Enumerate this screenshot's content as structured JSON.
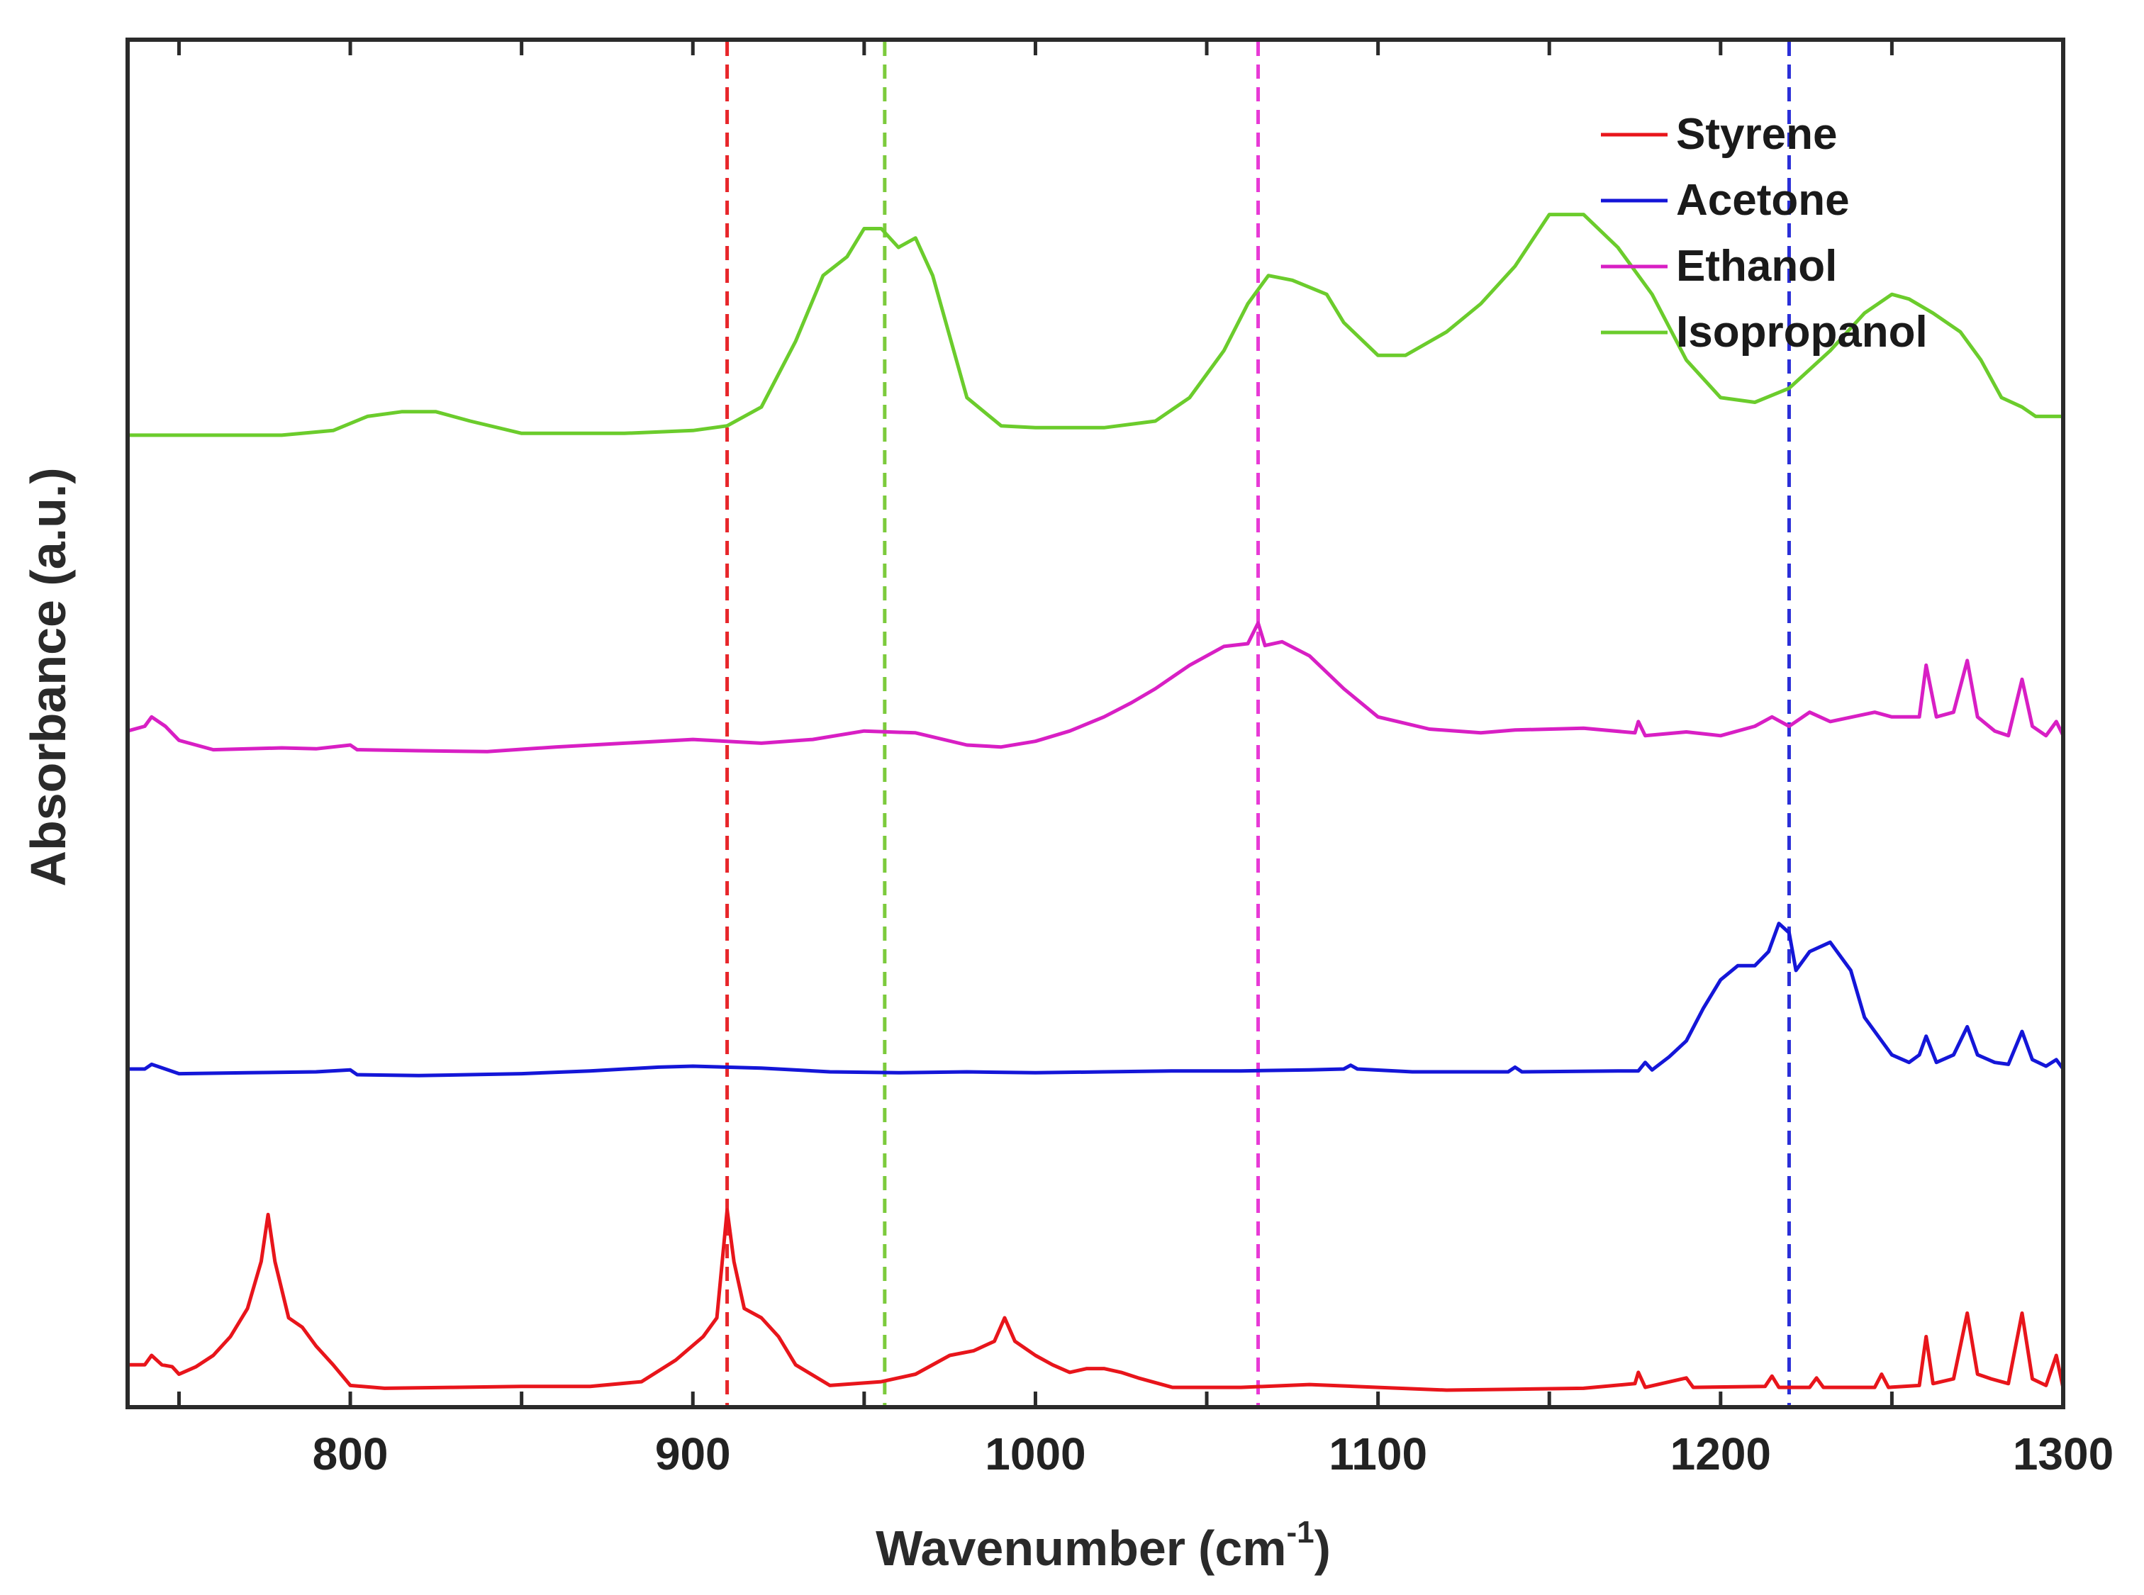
{
  "chart_data": {
    "type": "line",
    "title": "",
    "xlabel": "Wavenumber",
    "xlabel_unit_base": "(cm",
    "xlabel_unit_exp": "-1",
    "xlabel_unit_close": ")",
    "ylabel": "Absorbance (a.u.)",
    "xlim": [
      735,
      1300
    ],
    "ylim": [
      0,
      1
    ],
    "x_ticks": [
      800,
      900,
      1000,
      1100,
      1200,
      1300
    ],
    "x_tick_labels": [
      "800",
      "900",
      "1000",
      "1100",
      "1200",
      "1300"
    ],
    "y_ticks_shown": false,
    "grid": false,
    "legend": {
      "position": "top-right",
      "entries": [
        "Styrene",
        "Acetone",
        "Ethanol",
        "Isopropanol"
      ]
    },
    "reference_lines": [
      {
        "x": 910,
        "color": "#e8262a",
        "style": "dashed"
      },
      {
        "x": 956,
        "color": "#7ccb3c",
        "style": "dashed"
      },
      {
        "x": 1065,
        "color": "#e83ad6",
        "style": "dashed"
      },
      {
        "x": 1220,
        "color": "#2a2fd8",
        "style": "dashed"
      }
    ],
    "series": [
      {
        "name": "Styrene",
        "color": "#e8151b",
        "points": [
          [
            735,
            0.03
          ],
          [
            740,
            0.03
          ],
          [
            742,
            0.04
          ],
          [
            745,
            0.03
          ],
          [
            748,
            0.028
          ],
          [
            750,
            0.02
          ],
          [
            755,
            0.028
          ],
          [
            760,
            0.04
          ],
          [
            765,
            0.06
          ],
          [
            770,
            0.09
          ],
          [
            774,
            0.14
          ],
          [
            776,
            0.19
          ],
          [
            778,
            0.14
          ],
          [
            782,
            0.08
          ],
          [
            786,
            0.07
          ],
          [
            790,
            0.05
          ],
          [
            795,
            0.03
          ],
          [
            800,
            0.008
          ],
          [
            810,
            0.005
          ],
          [
            830,
            0.006
          ],
          [
            850,
            0.007
          ],
          [
            870,
            0.007
          ],
          [
            885,
            0.012
          ],
          [
            895,
            0.035
          ],
          [
            903,
            0.06
          ],
          [
            907,
            0.08
          ],
          [
            910,
            0.195
          ],
          [
            912,
            0.14
          ],
          [
            915,
            0.09
          ],
          [
            920,
            0.08
          ],
          [
            925,
            0.06
          ],
          [
            930,
            0.03
          ],
          [
            940,
            0.008
          ],
          [
            955,
            0.012
          ],
          [
            965,
            0.02
          ],
          [
            975,
            0.04
          ],
          [
            982,
            0.045
          ],
          [
            988,
            0.055
          ],
          [
            991,
            0.08
          ],
          [
            994,
            0.055
          ],
          [
            1000,
            0.04
          ],
          [
            1005,
            0.03
          ],
          [
            1010,
            0.022
          ],
          [
            1015,
            0.026
          ],
          [
            1020,
            0.026
          ],
          [
            1025,
            0.022
          ],
          [
            1030,
            0.016
          ],
          [
            1040,
            0.006
          ],
          [
            1060,
            0.006
          ],
          [
            1080,
            0.009
          ],
          [
            1100,
            0.006
          ],
          [
            1120,
            0.003
          ],
          [
            1140,
            0.004
          ],
          [
            1160,
            0.005
          ],
          [
            1175,
            0.01
          ],
          [
            1176,
            0.022
          ],
          [
            1178,
            0.006
          ],
          [
            1190,
            0.016
          ],
          [
            1192,
            0.006
          ],
          [
            1213,
            0.007
          ],
          [
            1215,
            0.018
          ],
          [
            1217,
            0.006
          ],
          [
            1226,
            0.006
          ],
          [
            1228,
            0.016
          ],
          [
            1230,
            0.006
          ],
          [
            1245,
            0.006
          ],
          [
            1247,
            0.02
          ],
          [
            1249,
            0.006
          ],
          [
            1258,
            0.008
          ],
          [
            1260,
            0.06
          ],
          [
            1262,
            0.01
          ],
          [
            1268,
            0.015
          ],
          [
            1272,
            0.085
          ],
          [
            1275,
            0.02
          ],
          [
            1279,
            0.015
          ],
          [
            1284,
            0.01
          ],
          [
            1288,
            0.085
          ],
          [
            1291,
            0.015
          ],
          [
            1295,
            0.008
          ],
          [
            1298,
            0.04
          ],
          [
            1300,
            0.005
          ]
        ]
      },
      {
        "name": "Acetone",
        "color": "#1416d8",
        "points": [
          [
            735,
            0.345
          ],
          [
            740,
            0.345
          ],
          [
            742,
            0.35
          ],
          [
            746,
            0.345
          ],
          [
            750,
            0.34
          ],
          [
            770,
            0.341
          ],
          [
            790,
            0.342
          ],
          [
            800,
            0.344
          ],
          [
            802,
            0.339
          ],
          [
            820,
            0.338
          ],
          [
            850,
            0.34
          ],
          [
            870,
            0.343
          ],
          [
            890,
            0.347
          ],
          [
            900,
            0.348
          ],
          [
            920,
            0.346
          ],
          [
            940,
            0.342
          ],
          [
            960,
            0.341
          ],
          [
            980,
            0.342
          ],
          [
            1000,
            0.341
          ],
          [
            1020,
            0.342
          ],
          [
            1040,
            0.343
          ],
          [
            1060,
            0.343
          ],
          [
            1080,
            0.344
          ],
          [
            1090,
            0.345
          ],
          [
            1092,
            0.349
          ],
          [
            1094,
            0.345
          ],
          [
            1110,
            0.342
          ],
          [
            1130,
            0.342
          ],
          [
            1138,
            0.342
          ],
          [
            1140,
            0.347
          ],
          [
            1142,
            0.342
          ],
          [
            1170,
            0.343
          ],
          [
            1176,
            0.343
          ],
          [
            1178,
            0.352
          ],
          [
            1180,
            0.344
          ],
          [
            1185,
            0.358
          ],
          [
            1190,
            0.375
          ],
          [
            1195,
            0.41
          ],
          [
            1200,
            0.44
          ],
          [
            1205,
            0.455
          ],
          [
            1210,
            0.455
          ],
          [
            1214,
            0.47
          ],
          [
            1217,
            0.5
          ],
          [
            1220,
            0.49
          ],
          [
            1222,
            0.45
          ],
          [
            1226,
            0.47
          ],
          [
            1232,
            0.48
          ],
          [
            1238,
            0.45
          ],
          [
            1242,
            0.4
          ],
          [
            1246,
            0.38
          ],
          [
            1250,
            0.36
          ],
          [
            1255,
            0.352
          ],
          [
            1258,
            0.36
          ],
          [
            1260,
            0.38
          ],
          [
            1263,
            0.352
          ],
          [
            1268,
            0.36
          ],
          [
            1272,
            0.39
          ],
          [
            1275,
            0.36
          ],
          [
            1280,
            0.352
          ],
          [
            1284,
            0.35
          ],
          [
            1288,
            0.385
          ],
          [
            1291,
            0.355
          ],
          [
            1295,
            0.348
          ],
          [
            1298,
            0.355
          ],
          [
            1300,
            0.345
          ]
        ]
      },
      {
        "name": "Ethanol",
        "color": "#d81fc4",
        "points": [
          [
            735,
            0.705
          ],
          [
            740,
            0.71
          ],
          [
            742,
            0.72
          ],
          [
            746,
            0.71
          ],
          [
            750,
            0.695
          ],
          [
            760,
            0.685
          ],
          [
            780,
            0.687
          ],
          [
            790,
            0.686
          ],
          [
            800,
            0.69
          ],
          [
            802,
            0.685
          ],
          [
            820,
            0.684
          ],
          [
            840,
            0.683
          ],
          [
            860,
            0.688
          ],
          [
            880,
            0.692
          ],
          [
            900,
            0.696
          ],
          [
            920,
            0.692
          ],
          [
            935,
            0.696
          ],
          [
            950,
            0.705
          ],
          [
            965,
            0.703
          ],
          [
            980,
            0.69
          ],
          [
            990,
            0.688
          ],
          [
            1000,
            0.694
          ],
          [
            1010,
            0.705
          ],
          [
            1020,
            0.72
          ],
          [
            1028,
            0.735
          ],
          [
            1035,
            0.75
          ],
          [
            1045,
            0.775
          ],
          [
            1055,
            0.795
          ],
          [
            1062,
            0.798
          ],
          [
            1065,
            0.82
          ],
          [
            1067,
            0.796
          ],
          [
            1072,
            0.8
          ],
          [
            1080,
            0.785
          ],
          [
            1090,
            0.75
          ],
          [
            1100,
            0.72
          ],
          [
            1115,
            0.707
          ],
          [
            1130,
            0.703
          ],
          [
            1140,
            0.706
          ],
          [
            1160,
            0.708
          ],
          [
            1175,
            0.703
          ],
          [
            1176,
            0.715
          ],
          [
            1178,
            0.7
          ],
          [
            1190,
            0.704
          ],
          [
            1200,
            0.7
          ],
          [
            1210,
            0.71
          ],
          [
            1215,
            0.72
          ],
          [
            1220,
            0.71
          ],
          [
            1226,
            0.725
          ],
          [
            1232,
            0.715
          ],
          [
            1245,
            0.725
          ],
          [
            1250,
            0.72
          ],
          [
            1258,
            0.72
          ],
          [
            1260,
            0.775
          ],
          [
            1263,
            0.72
          ],
          [
            1268,
            0.725
          ],
          [
            1272,
            0.78
          ],
          [
            1275,
            0.72
          ],
          [
            1280,
            0.705
          ],
          [
            1284,
            0.7
          ],
          [
            1288,
            0.76
          ],
          [
            1291,
            0.71
          ],
          [
            1295,
            0.7
          ],
          [
            1298,
            0.715
          ],
          [
            1300,
            0.7
          ]
        ]
      },
      {
        "name": "Isopropanol",
        "color": "#6bcc2c",
        "points": [
          [
            735,
            1.02
          ],
          [
            760,
            1.02
          ],
          [
            780,
            1.02
          ],
          [
            795,
            1.025
          ],
          [
            805,
            1.04
          ],
          [
            815,
            1.045
          ],
          [
            825,
            1.045
          ],
          [
            835,
            1.035
          ],
          [
            850,
            1.022
          ],
          [
            880,
            1.022
          ],
          [
            900,
            1.025
          ],
          [
            910,
            1.03
          ],
          [
            920,
            1.05
          ],
          [
            930,
            1.12
          ],
          [
            938,
            1.19
          ],
          [
            945,
            1.21
          ],
          [
            950,
            1.24
          ],
          [
            955,
            1.24
          ],
          [
            960,
            1.22
          ],
          [
            965,
            1.23
          ],
          [
            970,
            1.19
          ],
          [
            980,
            1.06
          ],
          [
            990,
            1.03
          ],
          [
            1000,
            1.028
          ],
          [
            1020,
            1.028
          ],
          [
            1035,
            1.035
          ],
          [
            1045,
            1.06
          ],
          [
            1055,
            1.11
          ],
          [
            1062,
            1.16
          ],
          [
            1068,
            1.19
          ],
          [
            1075,
            1.185
          ],
          [
            1085,
            1.17
          ],
          [
            1090,
            1.14
          ],
          [
            1100,
            1.105
          ],
          [
            1108,
            1.105
          ],
          [
            1120,
            1.13
          ],
          [
            1130,
            1.16
          ],
          [
            1140,
            1.2
          ],
          [
            1150,
            1.255
          ],
          [
            1160,
            1.255
          ],
          [
            1170,
            1.22
          ],
          [
            1180,
            1.17
          ],
          [
            1190,
            1.1
          ],
          [
            1200,
            1.06
          ],
          [
            1210,
            1.055
          ],
          [
            1220,
            1.07
          ],
          [
            1232,
            1.11
          ],
          [
            1242,
            1.15
          ],
          [
            1250,
            1.17
          ],
          [
            1255,
            1.165
          ],
          [
            1262,
            1.15
          ],
          [
            1270,
            1.13
          ],
          [
            1276,
            1.1
          ],
          [
            1282,
            1.06
          ],
          [
            1288,
            1.05
          ],
          [
            1292,
            1.04
          ],
          [
            1296,
            1.04
          ],
          [
            1300,
            1.04
          ]
        ]
      }
    ]
  }
}
